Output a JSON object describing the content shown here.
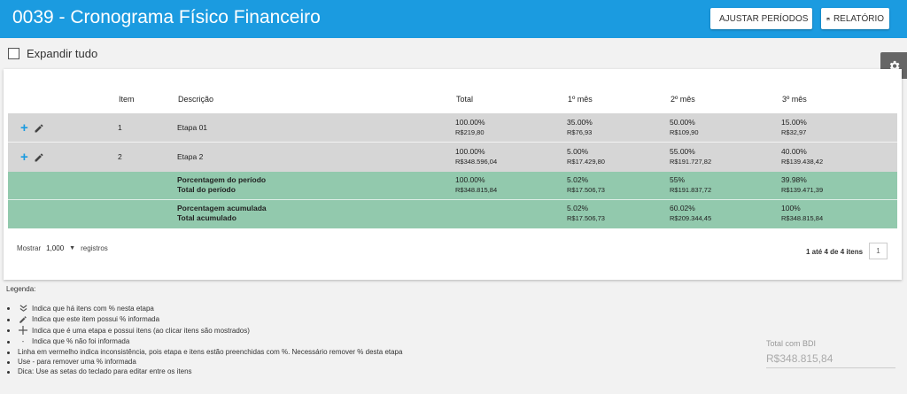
{
  "header": {
    "title": "0039 - Cronograma Físico Financeiro",
    "adjust_label": "AJUSTAR PERÍODOS",
    "report_label": "RELATÓRIO",
    "bg_color": "#1b9be0"
  },
  "expand_label": "Expandir tudo",
  "table": {
    "columns": [
      "Item",
      "Descrição",
      "Total",
      "1º mês",
      "2º mês",
      "3º mês"
    ],
    "rows": [
      {
        "item": "1",
        "desc": "Etapa 01",
        "total_pct": "100.00%",
        "total_val": "R$219,80",
        "m1_pct": "35.00%",
        "m1_val": "R$76,93",
        "m2_pct": "50.00%",
        "m2_val": "R$109,90",
        "m3_pct": "15.00%",
        "m3_val": "R$32,97"
      },
      {
        "item": "2",
        "desc": "Etapa 2",
        "total_pct": "100.00%",
        "total_val": "R$348.596,04",
        "m1_pct": "5.00%",
        "m1_val": "R$17.429,80",
        "m2_pct": "55.00%",
        "m2_val": "R$191.727,82",
        "m3_pct": "40.00%",
        "m3_val": "R$139.438,42"
      }
    ],
    "period": {
      "label1": "Porcentagem do período",
      "label2": "Total do período",
      "total_pct": "100.00%",
      "total_val": "R$348.815,84",
      "m1_pct": "5.02%",
      "m1_val": "R$17.506,73",
      "m2_pct": "55%",
      "m2_val": "R$191.837,72",
      "m3_pct": "39.98%",
      "m3_val": "R$139.471,39"
    },
    "cumulative": {
      "label1": "Porcentagem acumulada",
      "label2": "Total acumulado",
      "m1_pct": "5.02%",
      "m1_val": "R$17.506,73",
      "m2_pct": "60.02%",
      "m2_val": "R$209.344,45",
      "m3_pct": "100%",
      "m3_val": "R$348.815,84"
    }
  },
  "footer": {
    "show_label": "Mostrar",
    "page_size": "1,000",
    "records_label": "registros",
    "page_info": "1 até 4 de 4 itens",
    "page_number": "1"
  },
  "legend": {
    "title": "Legenda:",
    "items": [
      "Indica que há itens com % nesta etapa",
      "Indica que este item possui % informada",
      "Indica que é uma etapa e possui itens (ao clicar itens são mostrados)",
      "Indica que % não foi informada",
      "Linha em vermelho indica inconsistência, pois etapa e itens estão preenchidas com %. Necessário remover % desta etapa",
      "Use - para remover uma % informada",
      "Dica: Use as setas do teclado para editar entre os itens"
    ],
    "dash_symbol": "-"
  },
  "bdi": {
    "label": "Total com BDI",
    "value": "R$348.815,84"
  }
}
